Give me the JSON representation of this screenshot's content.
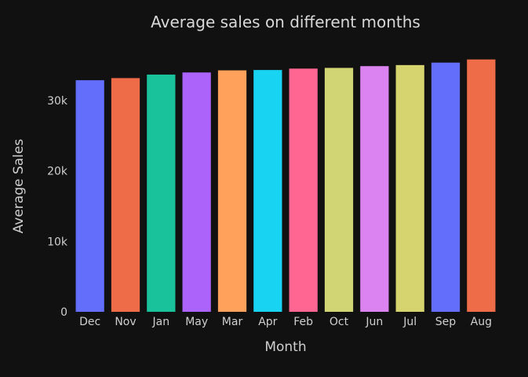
{
  "chart_data": {
    "type": "bar",
    "title": "Average sales on different months",
    "xlabel": "Month",
    "ylabel": "Average Sales",
    "categories": [
      "Dec",
      "Nov",
      "Jan",
      "May",
      "Mar",
      "Apr",
      "Feb",
      "Oct",
      "Jun",
      "Jul",
      "Sep",
      "Aug"
    ],
    "values": [
      32900,
      33200,
      33700,
      34000,
      34300,
      34350,
      34550,
      34650,
      34900,
      35050,
      35400,
      35850
    ],
    "colors": [
      "#636efa",
      "#ef6c48",
      "#19c29a",
      "#ab63fa",
      "#ffa15a",
      "#19d3f3",
      "#ff6692",
      "#d2d573",
      "#db83f0",
      "#d6d46e",
      "#636efa",
      "#ef6c48"
    ],
    "ylim": [
      0,
      37600
    ],
    "yticks": [
      0,
      10000,
      20000,
      30000
    ],
    "ytick_labels": [
      "0",
      "10k",
      "20k",
      "30k"
    ],
    "grid": false,
    "legend": "none"
  },
  "theme": {
    "background": "#111111",
    "text": "#cfcfcf",
    "title_text": "#d8d8d8"
  }
}
